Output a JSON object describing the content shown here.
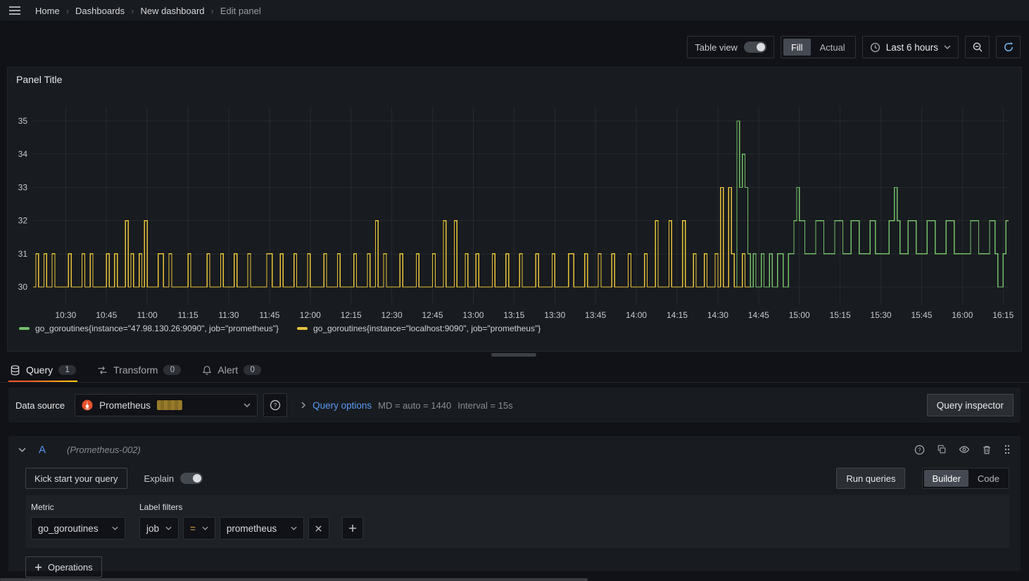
{
  "nav": {
    "breadcrumbs": [
      "Home",
      "Dashboards",
      "New dashboard",
      "Edit panel"
    ]
  },
  "toolbar": {
    "table_view": "Table view",
    "fill": "Fill",
    "actual": "Actual",
    "time_range": "Last 6 hours"
  },
  "panel": {
    "title": "Panel Title"
  },
  "chart_data": {
    "type": "line",
    "render": "step",
    "title": "Panel Title",
    "x_unit": "minutes since 10:30",
    "xlim": [
      -12,
      347
    ],
    "ylim": [
      29.47,
      35.42
    ],
    "grid": true,
    "legend_position": "bottom",
    "y_ticks": [
      30,
      31,
      32,
      33,
      34,
      35
    ],
    "x_ticks": [
      {
        "t": 0,
        "label": "10:30"
      },
      {
        "t": 15,
        "label": "10:45"
      },
      {
        "t": 30,
        "label": "11:00"
      },
      {
        "t": 45,
        "label": "11:15"
      },
      {
        "t": 60,
        "label": "11:30"
      },
      {
        "t": 75,
        "label": "11:45"
      },
      {
        "t": 90,
        "label": "12:00"
      },
      {
        "t": 105,
        "label": "12:15"
      },
      {
        "t": 120,
        "label": "12:30"
      },
      {
        "t": 135,
        "label": "12:45"
      },
      {
        "t": 150,
        "label": "13:00"
      },
      {
        "t": 165,
        "label": "13:15"
      },
      {
        "t": 180,
        "label": "13:30"
      },
      {
        "t": 195,
        "label": "13:45"
      },
      {
        "t": 210,
        "label": "14:00"
      },
      {
        "t": 225,
        "label": "14:15"
      },
      {
        "t": 240,
        "label": "14:30"
      },
      {
        "t": 255,
        "label": "14:45"
      },
      {
        "t": 270,
        "label": "15:00"
      },
      {
        "t": 285,
        "label": "15:15"
      },
      {
        "t": 300,
        "label": "15:30"
      },
      {
        "t": 315,
        "label": "15:45"
      },
      {
        "t": 330,
        "label": "16:00"
      },
      {
        "t": 345,
        "label": "16:15"
      }
    ],
    "series": [
      {
        "name": "go_goroutines{instance=\"47.98.130.26:9090\", job=\"prometheus\"}",
        "color": "#73bf69",
        "points": [
          [
            246,
            30
          ],
          [
            247,
            35
          ],
          [
            248,
            33
          ],
          [
            249,
            34
          ],
          [
            250,
            33
          ],
          [
            251,
            31
          ],
          [
            252,
            30
          ],
          [
            253,
            31
          ],
          [
            254,
            30
          ],
          [
            256,
            31
          ],
          [
            257,
            30
          ],
          [
            259,
            31
          ],
          [
            260,
            30
          ],
          [
            262,
            31
          ],
          [
            264,
            30
          ],
          [
            266,
            31
          ],
          [
            268,
            32
          ],
          [
            269,
            33
          ],
          [
            270,
            32
          ],
          [
            272,
            31
          ],
          [
            276,
            32
          ],
          [
            279,
            31
          ],
          [
            283,
            32
          ],
          [
            286,
            31
          ],
          [
            289,
            32
          ],
          [
            292,
            31
          ],
          [
            296,
            32
          ],
          [
            298,
            31
          ],
          [
            303,
            32
          ],
          [
            305,
            33
          ],
          [
            306,
            32
          ],
          [
            307,
            31
          ],
          [
            310,
            32
          ],
          [
            313,
            31
          ],
          [
            317,
            32
          ],
          [
            320,
            31
          ],
          [
            324,
            32
          ],
          [
            327,
            31
          ],
          [
            333,
            32
          ],
          [
            336,
            31
          ],
          [
            340,
            32
          ],
          [
            342,
            31
          ],
          [
            343,
            30
          ],
          [
            345,
            31
          ],
          [
            346,
            32
          ],
          [
            347,
            32
          ]
        ]
      },
      {
        "name": "go_goroutines{instance=\"localhost:9090\", job=\"prometheus\"}",
        "color": "#e8c33a",
        "points": [
          [
            -12,
            30
          ],
          [
            -11,
            31
          ],
          [
            -10,
            30
          ],
          [
            -8,
            31
          ],
          [
            -7,
            30
          ],
          [
            -5,
            31
          ],
          [
            -4,
            30
          ],
          [
            1,
            31
          ],
          [
            2,
            30
          ],
          [
            6,
            31
          ],
          [
            7,
            30
          ],
          [
            9,
            31
          ],
          [
            10,
            30
          ],
          [
            15,
            31
          ],
          [
            16,
            30
          ],
          [
            18,
            31
          ],
          [
            19,
            30
          ],
          [
            22,
            32
          ],
          [
            23,
            30
          ],
          [
            24,
            31
          ],
          [
            25,
            30
          ],
          [
            27,
            31
          ],
          [
            28,
            30
          ],
          [
            29,
            32
          ],
          [
            30,
            30
          ],
          [
            34,
            31
          ],
          [
            36,
            30
          ],
          [
            38,
            31
          ],
          [
            39,
            30
          ],
          [
            45,
            31
          ],
          [
            46,
            30
          ],
          [
            52,
            31
          ],
          [
            53,
            30
          ],
          [
            57,
            31
          ],
          [
            58,
            30
          ],
          [
            62,
            31
          ],
          [
            63,
            30
          ],
          [
            67,
            31
          ],
          [
            68,
            30
          ],
          [
            74,
            31
          ],
          [
            76,
            30
          ],
          [
            79,
            31
          ],
          [
            80,
            30
          ],
          [
            84,
            31
          ],
          [
            85,
            30
          ],
          [
            89,
            31
          ],
          [
            90,
            30
          ],
          [
            95,
            31
          ],
          [
            96,
            30
          ],
          [
            100,
            31
          ],
          [
            101,
            30
          ],
          [
            106,
            31
          ],
          [
            107,
            30
          ],
          [
            111,
            31
          ],
          [
            112,
            30
          ],
          [
            114,
            32
          ],
          [
            115,
            30
          ],
          [
            117,
            31
          ],
          [
            118,
            30
          ],
          [
            123,
            31
          ],
          [
            124,
            30
          ],
          [
            129,
            31
          ],
          [
            130,
            30
          ],
          [
            135,
            31
          ],
          [
            136,
            30
          ],
          [
            139,
            32
          ],
          [
            140,
            30
          ],
          [
            143,
            32
          ],
          [
            144,
            30
          ],
          [
            147,
            31
          ],
          [
            148,
            30
          ],
          [
            151,
            31
          ],
          [
            152,
            30
          ],
          [
            157,
            31
          ],
          [
            158,
            30
          ],
          [
            162,
            31
          ],
          [
            163,
            30
          ],
          [
            167,
            31
          ],
          [
            168,
            30
          ],
          [
            173,
            31
          ],
          [
            174,
            30
          ],
          [
            179,
            31
          ],
          [
            180,
            30
          ],
          [
            185,
            31
          ],
          [
            187,
            30
          ],
          [
            191,
            31
          ],
          [
            192,
            30
          ],
          [
            196,
            31
          ],
          [
            197,
            30
          ],
          [
            201,
            31
          ],
          [
            202,
            30
          ],
          [
            207,
            31
          ],
          [
            208,
            30
          ],
          [
            213,
            31
          ],
          [
            214,
            30
          ],
          [
            217,
            32
          ],
          [
            218,
            30
          ],
          [
            222,
            32
          ],
          [
            223,
            30
          ],
          [
            227,
            32
          ],
          [
            228,
            30
          ],
          [
            231,
            31
          ],
          [
            232,
            30
          ],
          [
            235,
            31
          ],
          [
            236,
            30
          ],
          [
            239,
            31
          ],
          [
            240,
            30
          ],
          [
            241,
            33
          ],
          [
            242,
            30
          ],
          [
            244,
            33
          ],
          [
            245,
            31
          ],
          [
            246,
            30
          ],
          [
            249,
            31
          ],
          [
            250,
            30
          ],
          [
            252,
            30
          ]
        ]
      }
    ]
  },
  "tabs": [
    {
      "label": "Query",
      "count": "1"
    },
    {
      "label": "Transform",
      "count": "0"
    },
    {
      "label": "Alert",
      "count": "0"
    }
  ],
  "query_header": {
    "datasource_label": "Data source",
    "datasource_value": "Prometheus",
    "query_options_label": "Query options",
    "max_data_points": "MD = auto = 1440",
    "interval": "Interval = 15s",
    "query_inspector": "Query inspector"
  },
  "query_row": {
    "ref_id": "A",
    "datasource_hint": "(Prometheus-002)",
    "kick_start": "Kick start your query",
    "explain": "Explain",
    "run_queries": "Run queries",
    "builder": "Builder",
    "code": "Code",
    "metric_label": "Metric",
    "metric_value": "go_goroutines",
    "label_filters_label": "Label filters",
    "filter_label": "job",
    "filter_op": "=",
    "filter_value": "prometheus",
    "operations": "Operations"
  },
  "colors": {
    "series_green": "#73bf69",
    "series_yellow": "#e8c33a",
    "link_blue": "#5b9bf5",
    "refid_blue": "#5794f2",
    "active_tab_orange": "#f05a28",
    "prometheus_orange": "#e6522c"
  }
}
